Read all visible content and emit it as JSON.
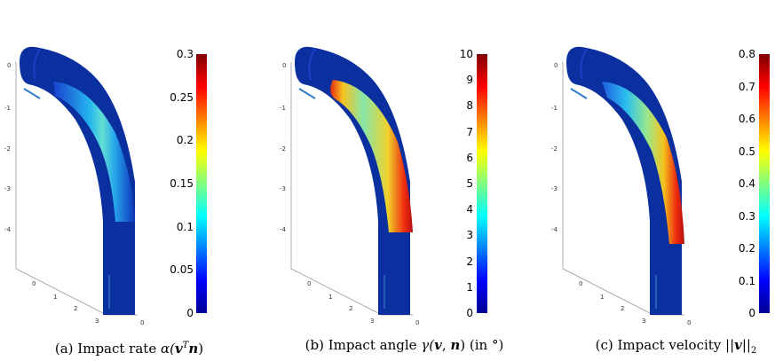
{
  "figures": [
    {
      "id": "a",
      "caption_label": "(a) Impact rate ",
      "caption_math": "α(",
      "caption_v": "v",
      "caption_T": "T",
      "caption_n": "n",
      "caption_close": ")",
      "colorbar_ticks": [
        "0.3",
        "0.25",
        "0.2",
        "0.15",
        "0.1",
        "0.05",
        "0"
      ],
      "colorbar_range": [
        0,
        0.3
      ],
      "hot_pattern": "uniform"
    },
    {
      "id": "b",
      "caption_label": "(b) Impact angle ",
      "caption_math": "γ(",
      "caption_v": "v",
      "caption_comma": ", ",
      "caption_n": "n",
      "caption_close": ")",
      "caption_unit": " (in °)",
      "colorbar_ticks": [
        "10",
        "9",
        "8",
        "7",
        "6",
        "5",
        "4",
        "3",
        "2",
        "1",
        "0"
      ],
      "colorbar_range": [
        0,
        10
      ],
      "hot_pattern": "edges"
    },
    {
      "id": "c",
      "caption_label": "(c) Impact velocity ",
      "caption_bars": "||",
      "caption_v": "v",
      "caption_sub": "||",
      "caption_index": "2",
      "colorbar_ticks": [
        "0.8",
        "0.7",
        "0.6",
        "0.5",
        "0.4",
        "0.3",
        "0.2",
        "0.1",
        "0"
      ],
      "colorbar_range": [
        0,
        0.8
      ],
      "hot_pattern": "outer"
    }
  ],
  "axis_ticks": {
    "vertical": [
      "0",
      "-1",
      "-2",
      "-3",
      "-4"
    ],
    "depth": [
      "0",
      "1",
      "2",
      "3"
    ],
    "right": "0"
  },
  "colormap": "jet"
}
